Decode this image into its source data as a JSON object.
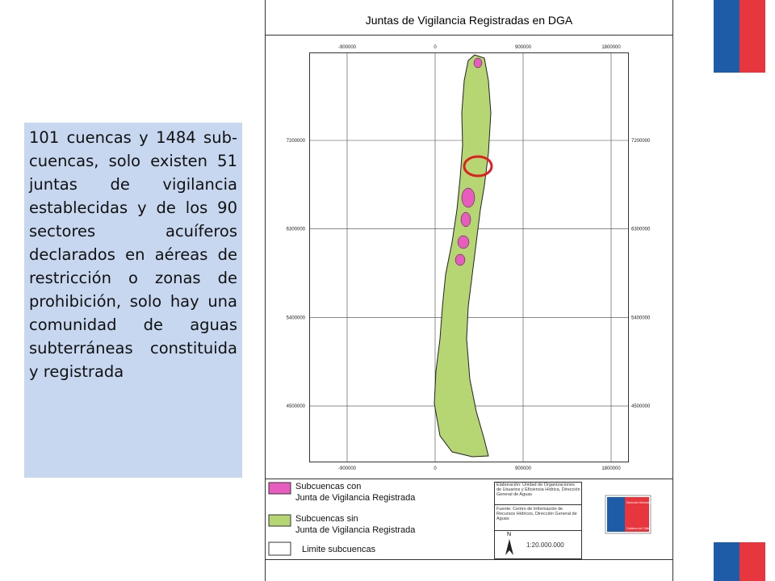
{
  "slide": {
    "paragraph": "101 cuencas y 1484 sub-cuencas, solo existen 51 juntas de vigilancia establecidas y de los 90 sectores acuíferos declarados en aéreas de restricción o zonas de prohibición, solo hay una comunidad de aguas subterráneas constituida y registrada",
    "map": {
      "title": "Juntas de Vigilancia Registradas en DGA",
      "x_ticks": [
        "-900000",
        "0",
        "900000",
        "1800000"
      ],
      "y_ticks": [
        "7200000",
        "6300000",
        "5400000",
        "4500000"
      ],
      "legend": [
        {
          "label": "Subcuencas con\nJunta de Vigilancia Registrada",
          "color": "#e85cbf"
        },
        {
          "label": "Subcuencas sin\nJunta de Vigilancia Registrada",
          "color": "#b5d673"
        },
        {
          "label": "Limite subcuencas",
          "color": "#ffffff"
        }
      ],
      "credits": [
        "Elaboración: Unidad de Organizaciones de Usuarios y Eficiencia Hídrica, Dirección General de Aguas",
        "Fuente: Centro de Información de Recursos Hídricos, Dirección General de Aguas"
      ],
      "north": "N",
      "scale": "1:20.000.000",
      "logo": [
        "Dirección General de Aguas",
        "Gobierno de Chile"
      ]
    }
  }
}
